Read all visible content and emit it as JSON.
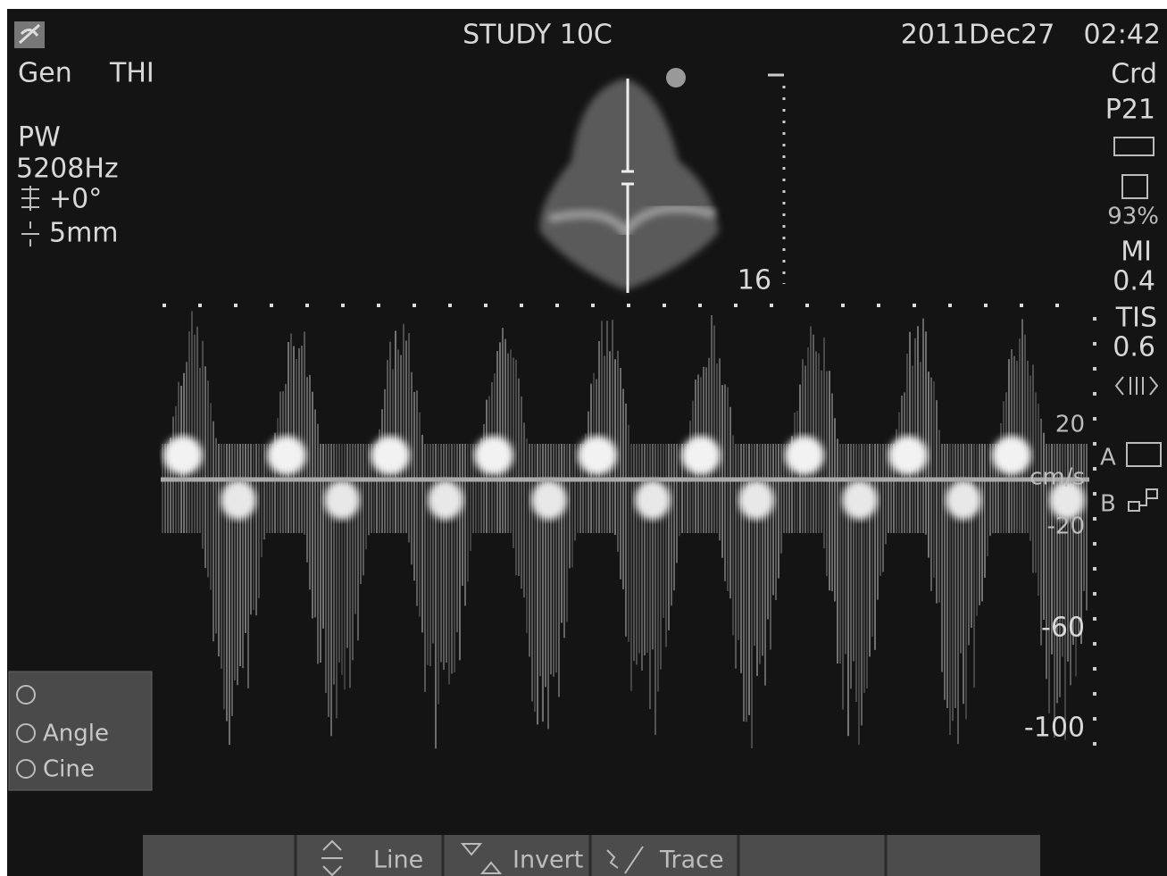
{
  "header": {
    "title": "STUDY 10C",
    "date": "2011Dec27",
    "time": "02:42"
  },
  "left_panel": {
    "preset": [
      "Gen",
      "THI"
    ],
    "mode": "PW",
    "prf": "5208Hz",
    "angle": "+0°",
    "gate": "5mm"
  },
  "right_panel": {
    "exam": "Crd",
    "probe": "P21",
    "storage": "93%",
    "mi_label": "MI",
    "mi_value": "0.4",
    "tis_label": "TIS",
    "tis_value": "0.6"
  },
  "depth": "16",
  "velocity_scale": {
    "labels": [
      "20",
      "cm/s",
      "-20",
      "-60",
      "-100"
    ]
  },
  "side_labels": [
    "A",
    "B"
  ],
  "menu": [
    "Angle",
    "Cine"
  ],
  "softkeys": [
    "Line",
    "Invert",
    "Trace"
  ]
}
